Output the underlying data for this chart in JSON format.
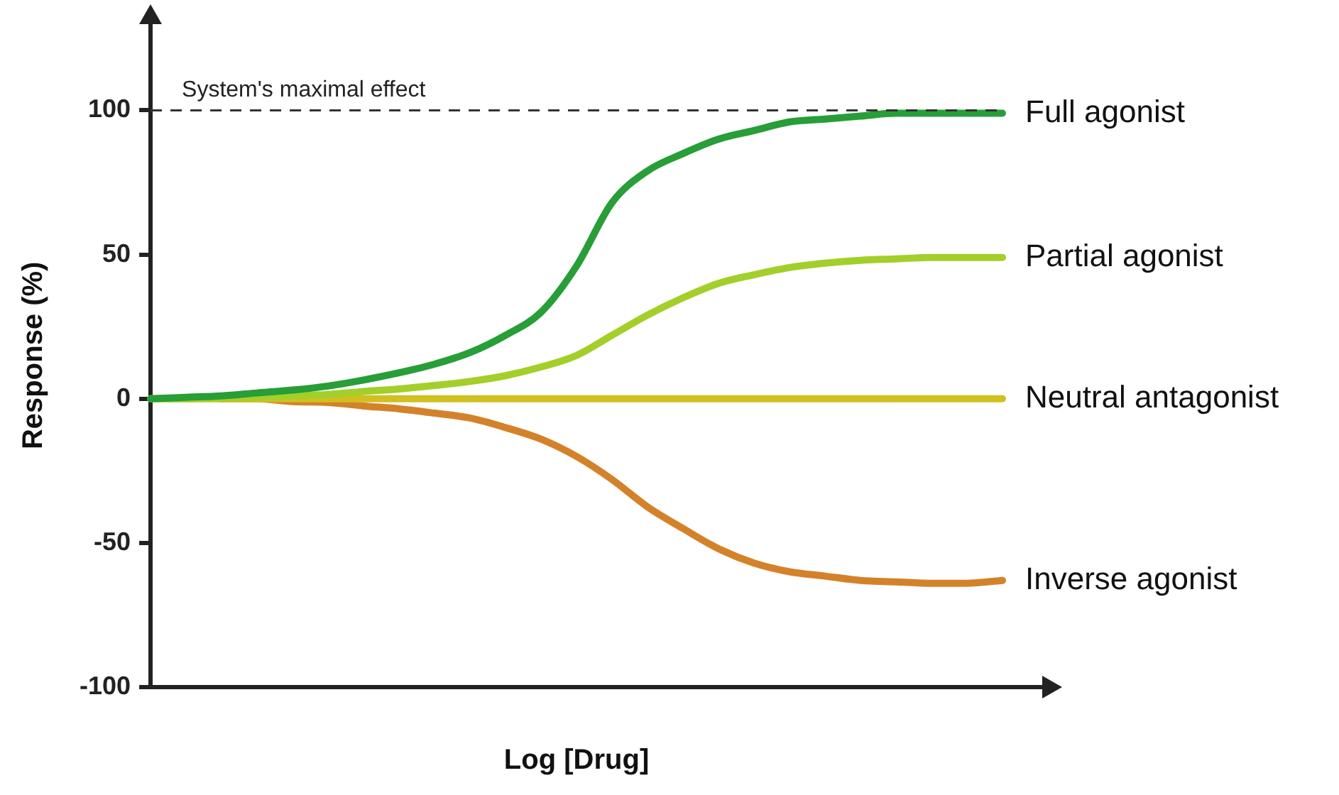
{
  "chart_data": {
    "type": "line",
    "xlabel": "Log [Drug]",
    "ylabel": "Response (%)",
    "categories": [
      null,
      null,
      null,
      null,
      null,
      null,
      null,
      null,
      null,
      null,
      null,
      null,
      null,
      null,
      null,
      null,
      null,
      null,
      null,
      null,
      null,
      null,
      null,
      null,
      null
    ],
    "series": [
      {
        "name": "Full agonist",
        "color": "#279e38",
        "values": [
          0,
          0.5,
          1,
          2,
          3,
          4.4,
          6.5,
          9,
          12,
          16,
          22,
          30,
          46,
          68,
          79,
          85,
          90,
          93,
          96,
          97,
          98,
          99,
          99,
          99,
          99
        ]
      },
      {
        "name": "Partial agonist",
        "color": "#a3cf2a",
        "values": [
          0,
          0,
          0.3,
          0.6,
          1,
          1.5,
          2.5,
          3.4,
          4.6,
          6,
          8,
          11,
          15,
          22,
          29,
          35,
          40,
          43,
          45.5,
          47,
          48,
          48.5,
          49,
          49,
          49
        ]
      },
      {
        "name": "Neutral antagonist",
        "color": "#d0c020",
        "values": [
          0,
          0,
          0,
          0,
          0,
          0,
          0,
          0,
          0,
          0,
          0,
          0,
          0,
          0,
          0,
          0,
          0,
          0,
          0,
          0,
          0,
          0,
          0,
          0,
          0
        ]
      },
      {
        "name": "Inverse agonist",
        "color": "#d4822a",
        "values": [
          null,
          null,
          0,
          0,
          -1,
          -1.3,
          -2.5,
          -3.5,
          -5,
          -6.7,
          -10,
          -14,
          -20,
          -28,
          -37.5,
          -45,
          -52,
          -57,
          -60,
          -61.5,
          -63,
          -63.5,
          -64,
          -64,
          -63
        ]
      }
    ],
    "ylim": [
      -100,
      130
    ],
    "yticks": [
      -100,
      -50,
      0,
      50,
      100
    ],
    "tick_labels": "y",
    "grid": false,
    "marker": "none",
    "line_style": "solid",
    "ref_lines": [
      {
        "axis": "y",
        "value": 100,
        "label": "System's maximal effect",
        "color": "#333333",
        "line_style": "dashed"
      }
    ]
  }
}
